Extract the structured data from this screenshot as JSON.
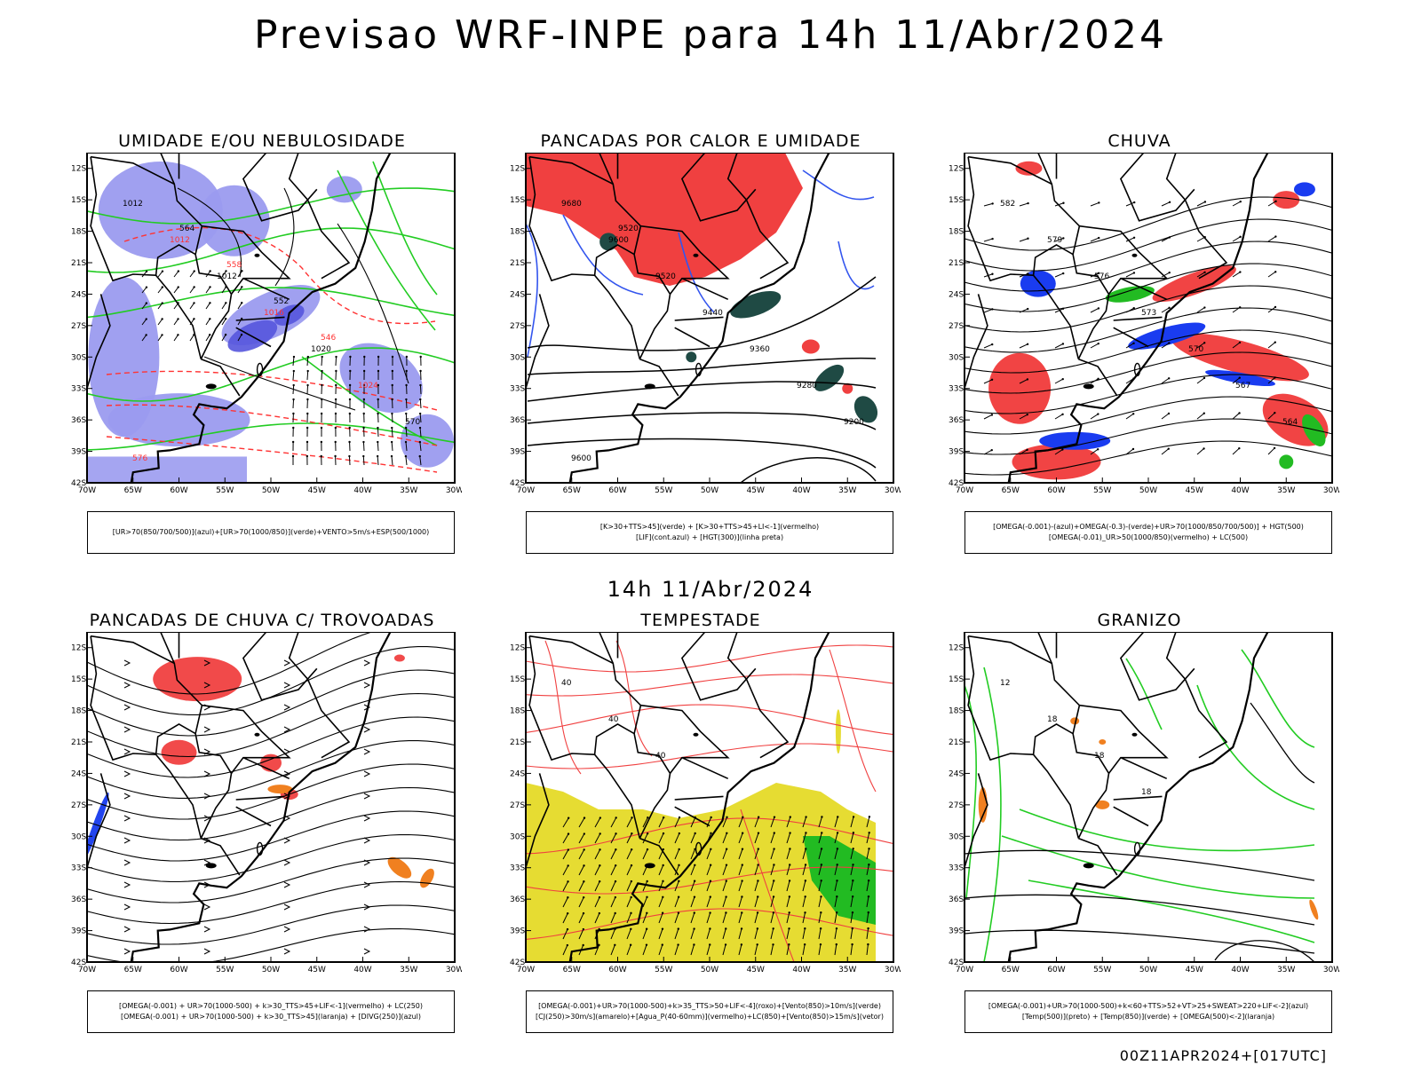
{
  "main_title": "Previsao WRF-INPE  para 14h 11/Abr/2024",
  "sub_title": "14h 11/Abr/2024",
  "footer": "00Z11APR2024+[017UTC]",
  "axes": {
    "lat_labels": [
      "12S",
      "15S",
      "18S",
      "21S",
      "24S",
      "27S",
      "30S",
      "33S",
      "36S",
      "39S",
      "42S"
    ],
    "lon_labels": [
      "70W",
      "65W",
      "60W",
      "55W",
      "50W",
      "45W",
      "40W",
      "35W",
      "30W"
    ]
  },
  "panels": [
    {
      "title": "UMIDADE E/OU NEBULOSIDADE",
      "legend": [
        "[UR>70(850/700/500)](azul)+[UR>70(1000/850)](verde)+VENTO>5m/s+ESP(500/1000)"
      ],
      "contour_labels": [
        "1012",
        "1012",
        "1012",
        "1016",
        "1020",
        "1024",
        "570",
        "576",
        "564",
        "558",
        "552",
        "546"
      ],
      "colors": {
        "blue": "#9b9bef",
        "green": "#22cc22",
        "red": "#ff3333"
      }
    },
    {
      "title": "PANCADAS POR CALOR E UMIDADE",
      "legend": [
        "[K>30+TTS>45](verde) + [K>30+TTS>45+LI<-1](vermelho)",
        "[LIF](cont.azul) + [HGT(300)](linha preta)"
      ],
      "contour_labels": [
        "9680",
        "9600",
        "9520",
        "9440",
        "9360",
        "9280",
        "9200",
        "9600",
        "9520"
      ],
      "colors": {
        "red": "#f04040",
        "darkgreen": "#1f4a44",
        "blue": "#3355ee"
      }
    },
    {
      "title": "CHUVA",
      "legend": [
        "[OMEGA(-0.001)-(azul)+OMEGA(-0.3)-(verde)+UR>70(1000/850/700/500)] + HGT(500)",
        "[OMEGA(-0.01)_UR>50(1000/850)(vermelho) + LC(500)"
      ],
      "contour_labels": [
        "582",
        "579",
        "576",
        "573",
        "570",
        "567",
        "564"
      ],
      "colors": {
        "red": "#f03a3a",
        "blue": "#1a3cf0",
        "green": "#22bb22"
      }
    },
    {
      "title": "PANCADAS DE CHUVA C/ TROVOADAS",
      "legend": [
        "[OMEGA(-0.001) + UR>70(1000-500) + k>30_TTS>45+LIF<-1](vermelho) + LC(250)",
        "[OMEGA(-0.001) + UR>70(1000-500) + k>30_TTS>45](laranja) + [DIVG(250)](azul)"
      ],
      "contour_labels": [],
      "colors": {
        "red": "#f04040",
        "orange": "#f08020",
        "blue": "#2244ee"
      }
    },
    {
      "title": "TEMPESTADE",
      "legend": [
        "[OMEGA(-0.001)+UR>70(1000-500)+k>35_TTS>50+LIF<-4](roxo)+[Vento(850)>10m/s](verde)",
        "[CJ(250)>30m/s](amarelo)+[Agua_P(40-60mm)](vermelho)+LC(850)+[Vento(850)>15m/s](vetor)"
      ],
      "contour_labels": [
        "40",
        "40",
        "40"
      ],
      "colors": {
        "yellow": "#e6dc32",
        "green": "#22bb22",
        "red": "#f04040"
      }
    },
    {
      "title": "GRANIZO",
      "legend": [
        "[OMEGA(-0.001)+UR>70(1000-500)+k<60+TTS>52+VT>25+SWEAT>220+LIF<-2](azul)",
        "[Temp(500)](preto) + [Temp(850)](verde) + [OMEGA(500)<-2](laranja)"
      ],
      "contour_labels": [
        "12",
        "18",
        "18",
        "18"
      ],
      "colors": {
        "green": "#22cc22",
        "orange": "#f08020"
      }
    }
  ]
}
